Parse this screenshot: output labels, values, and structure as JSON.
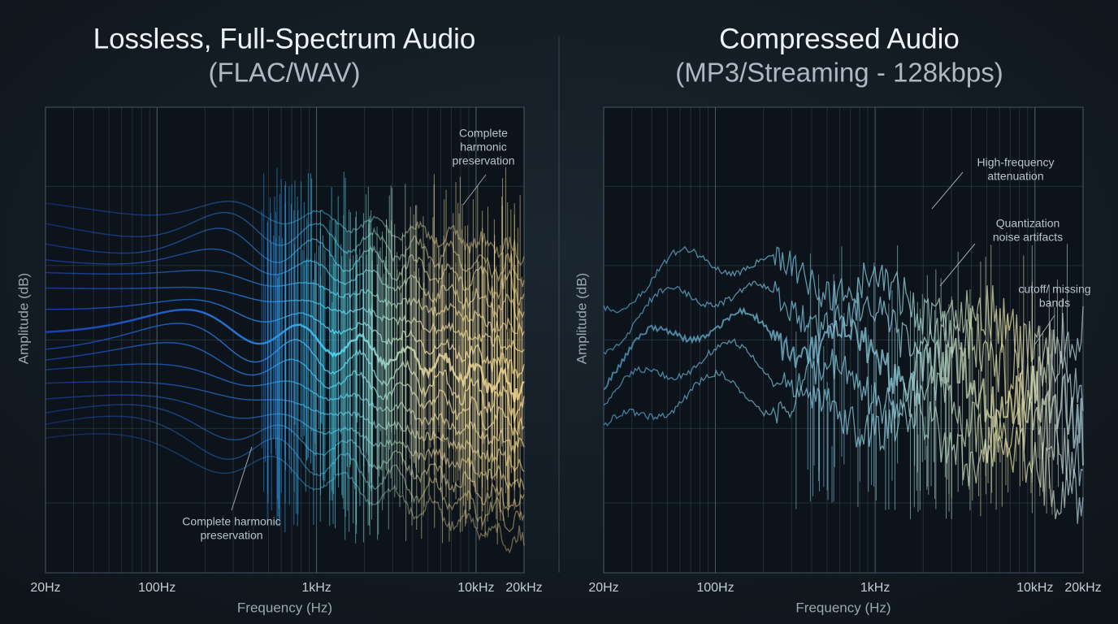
{
  "chart_data": [
    {
      "type": "spectrum",
      "title": "Lossless, Full-Spectrum Audio",
      "subtitle": "(FLAC/WAV)",
      "x_label": "Frequency (Hz)",
      "y_label": "Amplitude (dB)",
      "x_scale": "log",
      "xlim": [
        20,
        20000
      ],
      "xticks": [
        {
          "value": 20,
          "label": "20Hz"
        },
        {
          "value": 100,
          "label": "100Hz"
        },
        {
          "value": 1000,
          "label": "1kHz"
        },
        {
          "value": 10000,
          "label": "10kHz"
        },
        {
          "value": 20000,
          "label": "20kHz"
        }
      ],
      "grid": true,
      "annotations": [
        {
          "lines": [
            "Complete",
            "harmonic",
            "preservation"
          ]
        },
        {
          "lines": [
            "Complete harmonic",
            "preservation"
          ]
        }
      ]
    },
    {
      "type": "spectrum",
      "title": "Compressed Audio",
      "subtitle": "(MP3/Streaming - 128kbps)",
      "x_label": "Frequency (Hz)",
      "y_label": "Amplitude (dB)",
      "x_scale": "log",
      "xlim": [
        20,
        20000
      ],
      "xticks": [
        {
          "value": 20,
          "label": "20Hz"
        },
        {
          "value": 100,
          "label": "100Hz"
        },
        {
          "value": 1000,
          "label": "1kHz"
        },
        {
          "value": 10000,
          "label": "10kHz"
        },
        {
          "value": 20000,
          "label": "20kHz"
        }
      ],
      "grid": true,
      "annotations": [
        {
          "lines": [
            "High-frequency",
            "attenuation"
          ]
        },
        {
          "lines": [
            "Quantization",
            "noise artifacts"
          ]
        },
        {
          "lines": [
            "cutoff/ missing",
            "bands"
          ]
        }
      ]
    }
  ]
}
